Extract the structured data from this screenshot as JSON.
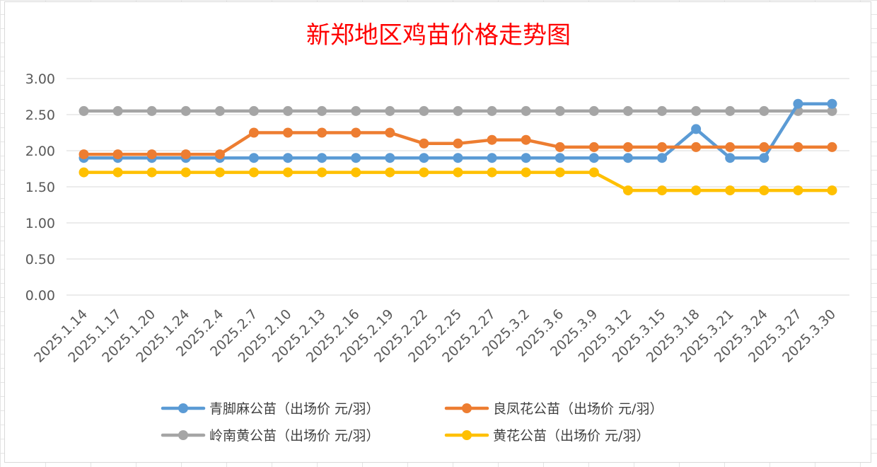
{
  "chart_data": {
    "type": "line",
    "title": "新郑地区鸡苗价格走势图",
    "xlabel": "",
    "ylabel": "",
    "ylim": [
      0,
      3
    ],
    "yticks": [
      "0.00",
      "0.50",
      "1.00",
      "1.50",
      "2.00",
      "2.50",
      "3.00"
    ],
    "grid": "horizontal",
    "legend_position": "bottom",
    "categories": [
      "2025.1.14",
      "2025.1.17",
      "2025.1.20",
      "2025.1.24",
      "2025.2.4",
      "2025.2.7",
      "2025.2.10",
      "2025.2.13",
      "2025.2.16",
      "2025.2.19",
      "2025.2.22",
      "2025.2.25",
      "2025.2.27",
      "2025.3.2",
      "2025.3.6",
      "2025.3.9",
      "2025.3.12",
      "2025.3.15",
      "2025.3.18",
      "2025.3.21",
      "2025.3.24",
      "2025.3.27",
      "2025.3.30"
    ],
    "series": [
      {
        "name": "青脚麻公苗（出场价 元/羽）",
        "color": "#5b9bd5",
        "values": [
          1.9,
          1.9,
          1.9,
          1.9,
          1.9,
          1.9,
          1.9,
          1.9,
          1.9,
          1.9,
          1.9,
          1.9,
          1.9,
          1.9,
          1.9,
          1.9,
          1.9,
          1.9,
          2.3,
          1.9,
          1.9,
          2.65,
          2.65
        ]
      },
      {
        "name": "良凤花公苗（出场价 元/羽）",
        "color": "#ed7d31",
        "values": [
          1.95,
          1.95,
          1.95,
          1.95,
          1.95,
          2.25,
          2.25,
          2.25,
          2.25,
          2.25,
          2.1,
          2.1,
          2.15,
          2.15,
          2.05,
          2.05,
          2.05,
          2.05,
          2.05,
          2.05,
          2.05,
          2.05,
          2.05
        ]
      },
      {
        "name": "岭南黄公苗（出场价 元/羽）",
        "color": "#a5a5a5",
        "values": [
          2.55,
          2.55,
          2.55,
          2.55,
          2.55,
          2.55,
          2.55,
          2.55,
          2.55,
          2.55,
          2.55,
          2.55,
          2.55,
          2.55,
          2.55,
          2.55,
          2.55,
          2.55,
          2.55,
          2.55,
          2.55,
          2.55,
          2.55
        ]
      },
      {
        "name": "黄花公苗（出场价 元/羽）",
        "color": "#ffc000",
        "values": [
          1.7,
          1.7,
          1.7,
          1.7,
          1.7,
          1.7,
          1.7,
          1.7,
          1.7,
          1.7,
          1.7,
          1.7,
          1.7,
          1.7,
          1.7,
          1.7,
          1.45,
          1.45,
          1.45,
          1.45,
          1.45,
          1.45,
          1.45
        ]
      }
    ],
    "draw_order": [
      2,
      0,
      1,
      3
    ]
  }
}
